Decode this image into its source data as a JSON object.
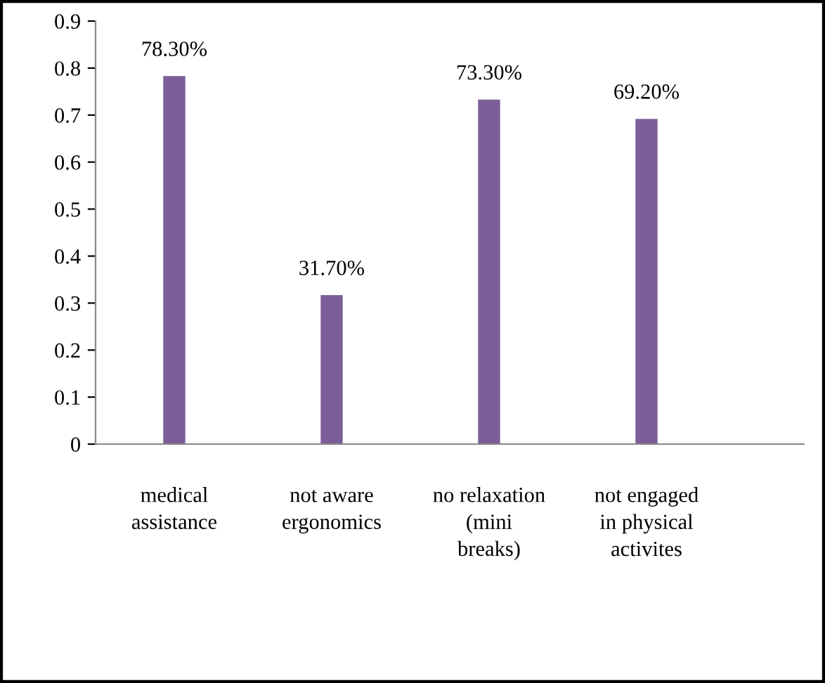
{
  "chart_data": {
    "type": "bar",
    "categories": [
      "medical\nassistance",
      "not aware\nergonomics",
      "no relaxation\n(mini\nbreaks)",
      "not engaged\nin physical\nactivites"
    ],
    "values": [
      0.783,
      0.317,
      0.733,
      0.692
    ],
    "value_labels": [
      "78.30%",
      "31.70%",
      "73.30%",
      "69.20%"
    ],
    "color": "#7b5e99",
    "ylim": [
      0,
      0.9
    ],
    "yticks": [
      0,
      0.1,
      0.2,
      0.3,
      0.4,
      0.5,
      0.6,
      0.7,
      0.8,
      0.9
    ],
    "grid": false,
    "legend": false
  }
}
